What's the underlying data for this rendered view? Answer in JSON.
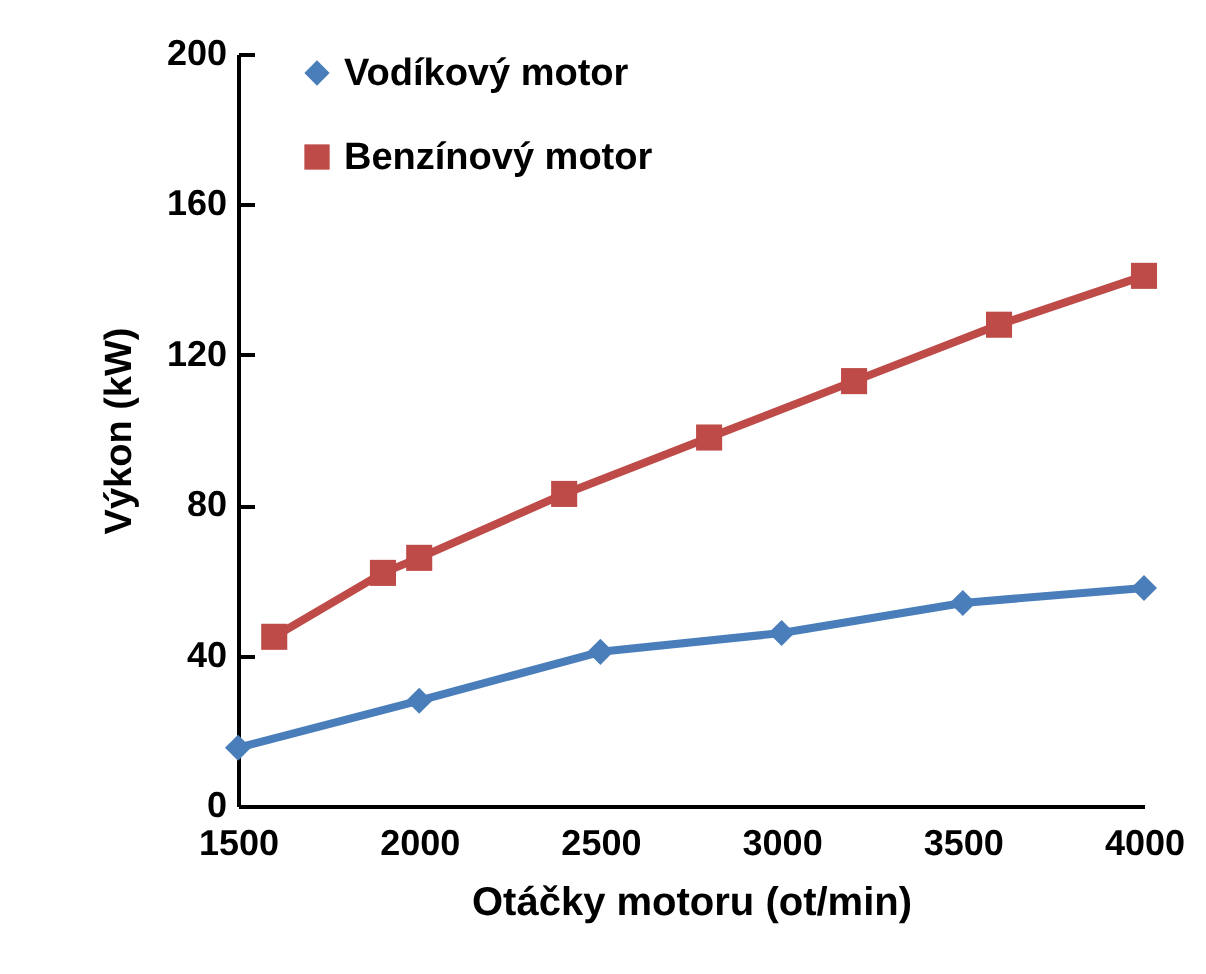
{
  "chart_data": {
    "type": "line",
    "xlabel": "Otáčky motoru (ot/min)",
    "ylabel": "Výkon (kW)",
    "xlim": [
      1500,
      4000
    ],
    "xticks": [
      1500,
      2000,
      2500,
      3000,
      3500,
      4000
    ],
    "ylim": [
      0,
      200
    ],
    "yticks": [
      0,
      40,
      80,
      120,
      160,
      200
    ],
    "grid": false,
    "legend": "top left",
    "series": [
      {
        "name": "Vodíkový motor",
        "color": "#4a7ebb",
        "marker": "diamond",
        "x": [
          1500,
          2000,
          2500,
          3000,
          3500,
          4000
        ],
        "values": [
          15.5,
          28,
          41,
          46,
          54,
          58
        ]
      },
      {
        "name": "Benzínový motor",
        "color": "#be4b48",
        "marker": "square",
        "x": [
          1600,
          1900,
          2000,
          2400,
          2800,
          3200,
          3600,
          4000
        ],
        "values": [
          45,
          62,
          66,
          83,
          98,
          113,
          128,
          141
        ]
      }
    ]
  }
}
